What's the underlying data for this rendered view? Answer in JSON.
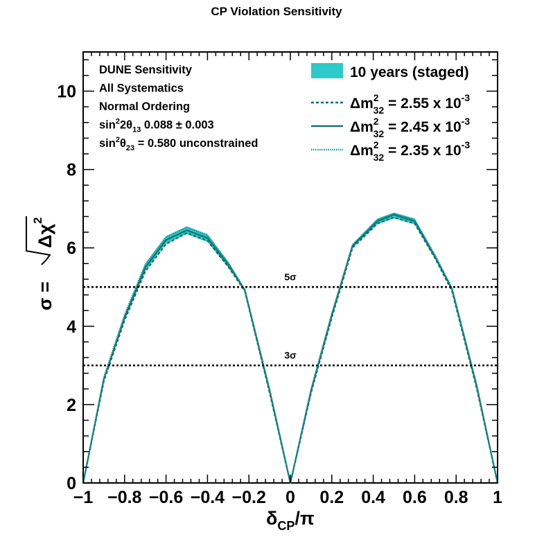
{
  "chart_data": {
    "type": "line",
    "title": "CP Violation Sensitivity",
    "xlabel": {
      "main": "δ",
      "sub": "CP",
      "tail": "/π"
    },
    "ylabel": {
      "main": "σ = ",
      "radicand": "Δχ",
      "sup": "2"
    },
    "xlim": [
      -1,
      1
    ],
    "ylim": [
      0,
      11
    ],
    "x_ticks": [
      -1,
      -0.8,
      -0.6,
      -0.4,
      -0.2,
      0,
      0.2,
      0.4,
      0.6,
      0.8,
      1
    ],
    "x_tick_labels": [
      "−1",
      "−0.8",
      "−0.6",
      "−0.4",
      "−0.2",
      "0",
      "0.2",
      "0.4",
      "0.6",
      "0.8",
      "1"
    ],
    "y_ticks": [
      0,
      2,
      4,
      6,
      8,
      10
    ],
    "y_tick_labels": [
      "0",
      "2",
      "4",
      "6",
      "8",
      "10"
    ],
    "grid": false,
    "legend_position": "top-right",
    "info_text": [
      {
        "text": "DUNE Sensitivity"
      },
      {
        "text": "All Systematics"
      },
      {
        "text": "Normal Ordering"
      },
      {
        "parts": [
          [
            "sin",
            ""
          ],
          [
            "2",
            "sup"
          ],
          [
            "2θ",
            ""
          ],
          [
            "13",
            "sub"
          ],
          [
            " 0.088 ± 0.003",
            ""
          ]
        ]
      },
      {
        "parts": [
          [
            "sin",
            ""
          ],
          [
            "2",
            "sup"
          ],
          [
            "θ",
            ""
          ],
          [
            "23",
            "sub"
          ],
          [
            " = 0.580 unconstrained",
            ""
          ]
        ]
      }
    ],
    "reference_lines": [
      {
        "y": 5,
        "label": "5σ",
        "label_x": 0.0
      },
      {
        "y": 3,
        "label": "3σ",
        "label_x": 0.0
      }
    ],
    "band": {
      "name": "10 years (staged)",
      "color": "#2ec9c9",
      "x": [
        -1,
        -0.9,
        -0.8,
        -0.7,
        -0.6,
        -0.5,
        -0.4,
        -0.3,
        -0.22,
        -0.1,
        0,
        0.1,
        0.2,
        0.3,
        0.42,
        0.5,
        0.6,
        0.7,
        0.78,
        0.9,
        1
      ],
      "lower": [
        0,
        2.6,
        4.15,
        5.4,
        6.1,
        6.35,
        6.15,
        5.5,
        4.9,
        2.3,
        0,
        2.3,
        4.2,
        6.0,
        6.6,
        6.75,
        6.6,
        5.7,
        4.9,
        2.4,
        0
      ],
      "upper": [
        0,
        2.7,
        4.3,
        5.6,
        6.3,
        6.55,
        6.35,
        5.65,
        4.95,
        2.4,
        0,
        2.4,
        4.35,
        6.1,
        6.75,
        6.9,
        6.75,
        5.8,
        5.0,
        2.5,
        0
      ]
    },
    "series": [
      {
        "name": {
          "main": "Δm",
          "sup": "2",
          "sub": "32",
          "tail": " = 2.55 x 10",
          "exp": "-3"
        },
        "color": "#0c6e62",
        "style": "dashed",
        "x": [
          -1,
          -0.9,
          -0.8,
          -0.7,
          -0.6,
          -0.5,
          -0.4,
          -0.3,
          -0.22,
          -0.1,
          0,
          0.1,
          0.2,
          0.3,
          0.42,
          0.5,
          0.6,
          0.7,
          0.78,
          0.9,
          1
        ],
        "y": [
          0,
          2.6,
          4.15,
          5.4,
          6.1,
          6.38,
          6.18,
          5.52,
          4.9,
          2.3,
          0,
          2.3,
          4.22,
          6.0,
          6.62,
          6.78,
          6.62,
          5.72,
          4.9,
          2.4,
          0
        ]
      },
      {
        "name": {
          "main": "Δm",
          "sup": "2",
          "sub": "32",
          "tail": " = 2.45 x 10",
          "exp": "-3"
        },
        "color": "#1a6e6e",
        "style": "solid",
        "x": [
          -1,
          -0.9,
          -0.8,
          -0.7,
          -0.6,
          -0.5,
          -0.4,
          -0.3,
          -0.22,
          -0.1,
          0,
          0.1,
          0.2,
          0.3,
          0.42,
          0.5,
          0.6,
          0.7,
          0.78,
          0.9,
          1
        ],
        "y": [
          0,
          2.65,
          4.22,
          5.5,
          6.2,
          6.45,
          6.25,
          5.58,
          4.92,
          2.35,
          0,
          2.35,
          4.28,
          6.05,
          6.68,
          6.85,
          6.68,
          5.76,
          4.95,
          2.45,
          0
        ]
      },
      {
        "name": {
          "main": "Δm",
          "sup": "2",
          "sub": "32",
          "tail": " = 2.35 x 10",
          "exp": "-3"
        },
        "color": "#1f8e96",
        "style": "dotted",
        "x": [
          -1,
          -0.9,
          -0.8,
          -0.7,
          -0.6,
          -0.5,
          -0.4,
          -0.3,
          -0.22,
          -0.1,
          0,
          0.1,
          0.2,
          0.3,
          0.42,
          0.5,
          0.6,
          0.7,
          0.78,
          0.9,
          1
        ],
        "y": [
          0,
          2.7,
          4.3,
          5.58,
          6.28,
          6.52,
          6.32,
          5.62,
          4.95,
          2.4,
          0,
          2.4,
          4.33,
          6.08,
          6.72,
          6.88,
          6.72,
          5.8,
          4.98,
          2.5,
          0
        ]
      }
    ]
  }
}
